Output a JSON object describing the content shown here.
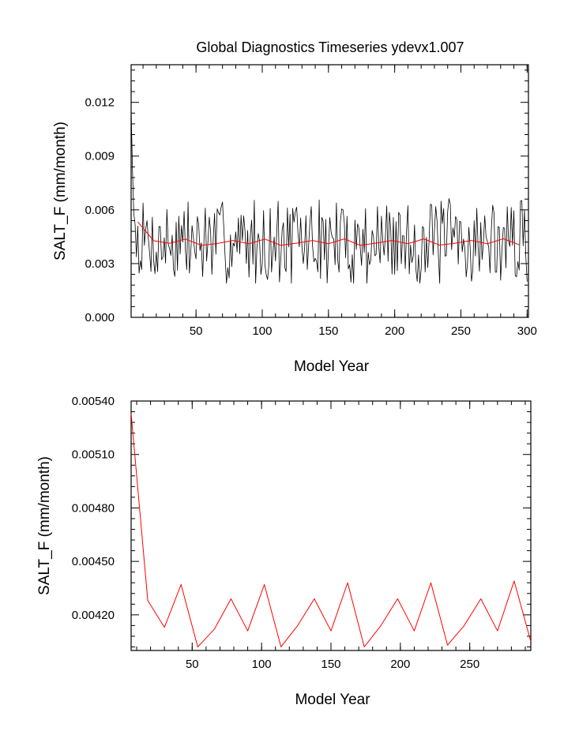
{
  "page": {
    "title": "Global Diagnostics Timeseries ydevx1.007"
  },
  "chart_data": [
    {
      "type": "line",
      "panel": "top",
      "xlabel": "Model Year",
      "ylabel": "SALT_F (mm/month)",
      "xlim": [
        1,
        301
      ],
      "ylim": [
        0.0,
        0.0141
      ],
      "xticks": [
        50,
        100,
        150,
        200,
        250,
        300
      ],
      "xtick_labels": [
        "50",
        "100",
        "150",
        "200",
        "250",
        "300"
      ],
      "yticks": [
        0.0,
        0.003,
        0.006,
        0.009,
        0.012
      ],
      "ytick_labels": [
        "0.000",
        "0.003",
        "0.006",
        "0.009",
        "0.012"
      ],
      "grid": false,
      "series": [
        {
          "color": "#000000",
          "seed": 7,
          "n": 300,
          "start_values": [
            0.0117,
            0.0083,
            0.0058,
            0.0052
          ],
          "mean": 0.0042,
          "range": [
            0.0019,
            0.0067
          ]
        },
        {
          "color": "#ff0000",
          "x": [
            6,
            18,
            30,
            42,
            54,
            66,
            78,
            90,
            102,
            114,
            126,
            138,
            150,
            162,
            174,
            186,
            198,
            210,
            222,
            234,
            246,
            258,
            270,
            282,
            294
          ],
          "values": [
            0.00533,
            0.00428,
            0.00413,
            0.00437,
            0.00402,
            0.00412,
            0.00429,
            0.00411,
            0.00437,
            0.00402,
            0.00414,
            0.00429,
            0.00411,
            0.00438,
            0.00402,
            0.00414,
            0.00429,
            0.00411,
            0.00438,
            0.00403,
            0.00414,
            0.00429,
            0.00411,
            0.00439,
            0.00405
          ]
        }
      ]
    },
    {
      "type": "line",
      "panel": "bottom",
      "xlabel": "Model Year",
      "ylabel": "SALT_F (mm/month)",
      "xlim": [
        6,
        294
      ],
      "ylim": [
        0.004,
        0.0054
      ],
      "xticks": [
        50,
        100,
        150,
        200,
        250
      ],
      "xtick_labels": [
        "50",
        "100",
        "150",
        "200",
        "250"
      ],
      "yticks": [
        0.0042,
        0.0045,
        0.0048,
        0.0051,
        0.0054
      ],
      "ytick_labels": [
        "0.00420",
        "0.00450",
        "0.00480",
        "0.00510",
        "0.00540"
      ],
      "grid": false,
      "series": [
        {
          "color": "#ff0000",
          "x": [
            6,
            18,
            30,
            42,
            54,
            66,
            78,
            90,
            102,
            114,
            126,
            138,
            150,
            162,
            174,
            186,
            198,
            210,
            222,
            234,
            246,
            258,
            270,
            282,
            294
          ],
          "values": [
            0.00533,
            0.00428,
            0.00413,
            0.00437,
            0.00402,
            0.00412,
            0.00429,
            0.00411,
            0.00437,
            0.00402,
            0.00414,
            0.00429,
            0.00411,
            0.00438,
            0.00402,
            0.00414,
            0.00429,
            0.00411,
            0.00438,
            0.00403,
            0.00414,
            0.00429,
            0.00411,
            0.00439,
            0.00405
          ]
        }
      ]
    }
  ]
}
